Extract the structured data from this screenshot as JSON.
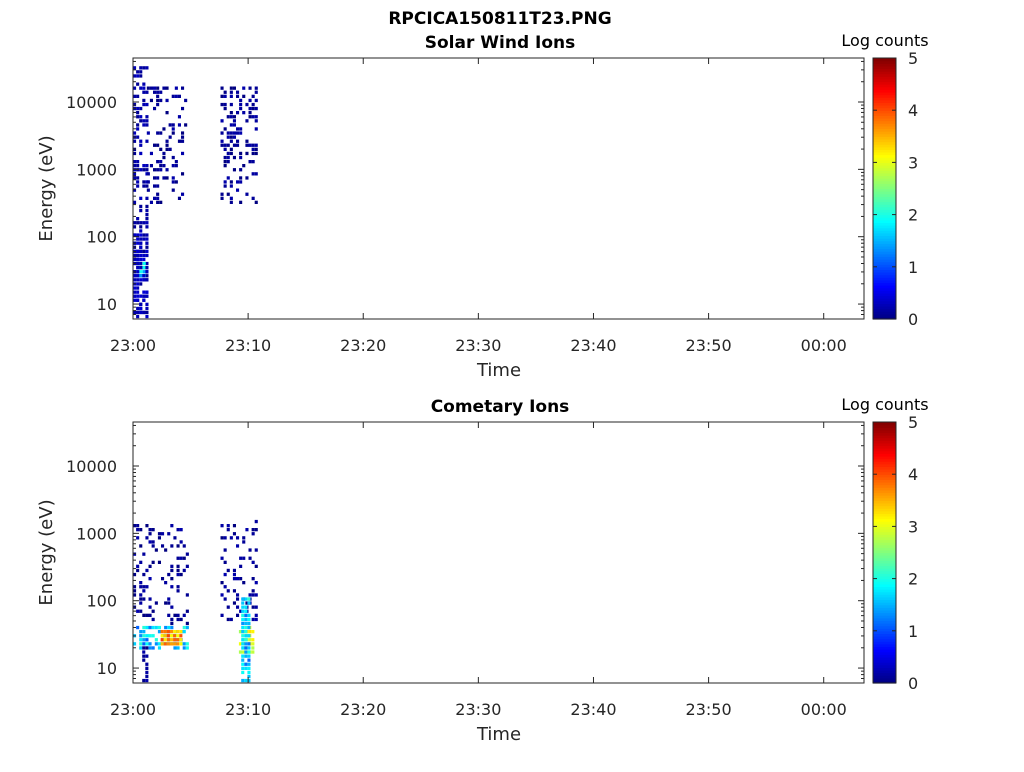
{
  "figure_title": "RPCICA150811T23.PNG",
  "chart_data": [
    {
      "type": "heatmap",
      "title": "Solar Wind Ions",
      "xlabel": "Time",
      "ylabel": "Energy (eV)",
      "x_ticks": [
        "23:00",
        "23:10",
        "23:20",
        "23:30",
        "23:40",
        "23:50",
        "00:00"
      ],
      "x_range_minutes": [
        0,
        63.5
      ],
      "y_scale": "log",
      "y_ticks": [
        10,
        100,
        1000,
        10000
      ],
      "y_range": [
        6,
        45000
      ],
      "colorbar": {
        "label": "Log counts",
        "ticks": [
          0,
          1,
          2,
          3,
          4,
          5
        ],
        "range": [
          0,
          5
        ],
        "colormap": "jet"
      },
      "regions": [
        {
          "t": [
            0.0,
            1.2
          ],
          "e": [
            6,
            35000
          ],
          "density": 0.45,
          "level": 0.2
        },
        {
          "t": [
            0.3,
            1.0
          ],
          "e": [
            25,
            45
          ],
          "density": 0.9,
          "level": 1.7
        },
        {
          "t": [
            0.0,
            1.2
          ],
          "e": [
            6,
            120
          ],
          "density": 0.65,
          "level": 0.3
        },
        {
          "t": [
            1.2,
            4.6
          ],
          "e": [
            300,
            17000
          ],
          "density": 0.22,
          "level": 0.1
        },
        {
          "t": [
            7.6,
            10.6
          ],
          "e": [
            300,
            16000
          ],
          "density": 0.3,
          "level": 0.1
        }
      ]
    },
    {
      "type": "heatmap",
      "title": "Cometary Ions",
      "xlabel": "Time",
      "ylabel": "Energy (eV)",
      "x_ticks": [
        "23:00",
        "23:10",
        "23:20",
        "23:30",
        "23:40",
        "23:50",
        "00:00"
      ],
      "x_range_minutes": [
        0,
        63.5
      ],
      "y_scale": "log",
      "y_ticks": [
        10,
        100,
        1000,
        10000
      ],
      "y_range": [
        6,
        45000
      ],
      "colorbar": {
        "label": "Log counts",
        "ticks": [
          0,
          1,
          2,
          3,
          4,
          5
        ],
        "range": [
          0,
          5
        ],
        "colormap": "jet"
      },
      "regions": [
        {
          "t": [
            0.0,
            4.6
          ],
          "e": [
            40,
            1300
          ],
          "density": 0.2,
          "level": 0.1
        },
        {
          "t": [
            0.0,
            4.6
          ],
          "e": [
            18,
            45
          ],
          "density": 0.6,
          "level": 1.6
        },
        {
          "t": [
            2.4,
            4.2
          ],
          "e": [
            22,
            38
          ],
          "density": 1.0,
          "level": 3.6
        },
        {
          "t": [
            7.6,
            10.6
          ],
          "e": [
            40,
            1600
          ],
          "density": 0.25,
          "level": 0.1
        },
        {
          "t": [
            9.2,
            10.4
          ],
          "e": [
            15,
            45
          ],
          "density": 0.8,
          "level": 2.8
        },
        {
          "t": [
            9.4,
            10.0
          ],
          "e": [
            6,
            120
          ],
          "density": 0.7,
          "level": 1.6
        },
        {
          "t": [
            0.8,
            1.2
          ],
          "e": [
            6,
            20
          ],
          "density": 0.6,
          "level": 0.1
        }
      ]
    }
  ]
}
